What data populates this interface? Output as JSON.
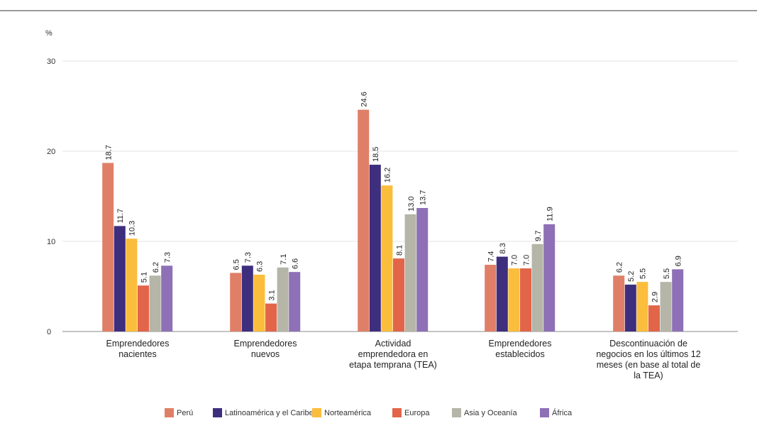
{
  "chart_data": {
    "type": "bar",
    "unit_label": "%",
    "ylim": [
      0,
      30
    ],
    "yticks": [
      0,
      10,
      20,
      30
    ],
    "grid": true,
    "legend_position": "bottom",
    "categories": [
      [
        "Emprendedores",
        "nacientes"
      ],
      [
        "Emprendedores",
        "nuevos"
      ],
      [
        "Actividad",
        "emprendedora en",
        "etapa temprana (TEA)"
      ],
      [
        "Emprendedores",
        "establecidos"
      ],
      [
        "Descontinuación de",
        "negocios en los últimos 12",
        "meses (en base al total de",
        "la TEA)"
      ]
    ],
    "series": [
      {
        "name": "Perú",
        "color": "#e07f67",
        "values": [
          18.7,
          6.5,
          24.6,
          7.4,
          6.2
        ]
      },
      {
        "name": "Latinoamérica y el Caribe",
        "color": "#3d2f7e",
        "values": [
          11.7,
          7.3,
          18.5,
          8.3,
          5.2
        ]
      },
      {
        "name": "Norteamérica",
        "color": "#fbbd3c",
        "values": [
          10.3,
          6.3,
          16.2,
          7.0,
          5.5
        ]
      },
      {
        "name": "Europa",
        "color": "#e2654a",
        "values": [
          5.1,
          3.1,
          8.1,
          7.0,
          2.9
        ]
      },
      {
        "name": "Asia y Oceanía",
        "color": "#b5b5a8",
        "values": [
          6.2,
          7.1,
          13.0,
          9.7,
          5.5
        ]
      },
      {
        "name": "África",
        "color": "#8e70b6",
        "values": [
          7.3,
          6.6,
          13.7,
          11.9,
          6.9
        ]
      }
    ]
  }
}
